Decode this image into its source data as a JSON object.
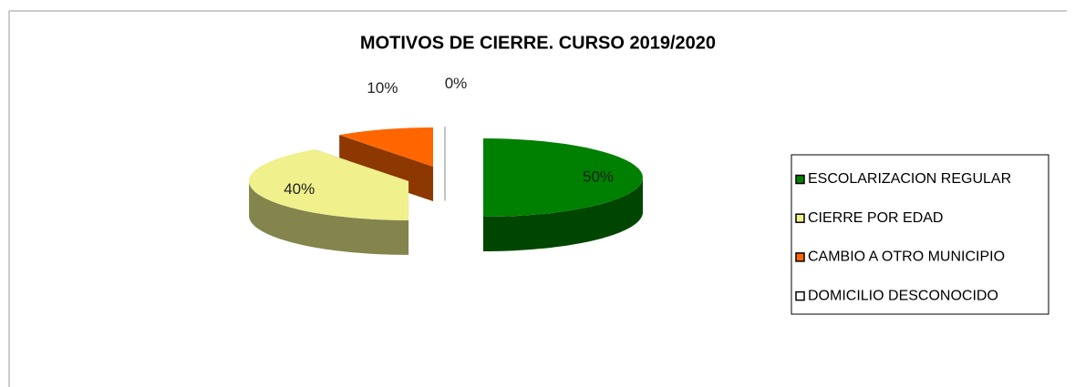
{
  "chart_data": {
    "type": "pie",
    "title": "MOTIVOS DE CIERRE. CURSO 2019/2020",
    "categories": [
      "ESCOLARIZACION REGULAR",
      "CIERRE POR EDAD",
      "CAMBIO A OTRO MUNICIPIO",
      "DOMICILIO DESCONOCIDO"
    ],
    "values": [
      50,
      40,
      10,
      0
    ],
    "value_labels": [
      "50%",
      "40%",
      "10%",
      "0%"
    ],
    "colors": [
      "#008000",
      "#f0f08c",
      "#ff6600",
      "#ffffff"
    ],
    "legend": "right"
  }
}
